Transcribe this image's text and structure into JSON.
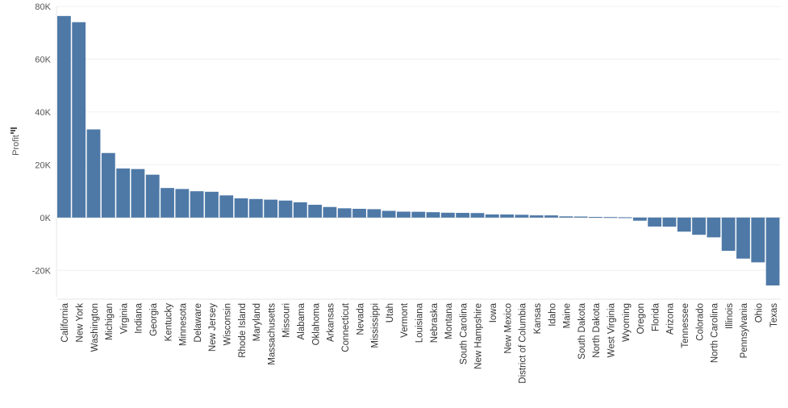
{
  "chart_data": {
    "type": "bar",
    "ylabel": "Profit",
    "ylim": [
      -30000,
      80000
    ],
    "yticks": [
      80000,
      60000,
      40000,
      20000,
      0,
      -20000
    ],
    "ytick_labels": [
      "80K",
      "60K",
      "40K",
      "20K",
      "0K",
      "-20K"
    ],
    "bar_color": "#4e79a7",
    "grid": true,
    "sort": "descending",
    "categories": [
      "California",
      "New York",
      "Washington",
      "Michigan",
      "Virginia",
      "Indiana",
      "Georgia",
      "Kentucky",
      "Minnesota",
      "Delaware",
      "New Jersey",
      "Wisconsin",
      "Rhode Island",
      "Maryland",
      "Massachusetts",
      "Missouri",
      "Alabama",
      "Oklahoma",
      "Arkansas",
      "Connecticut",
      "Nevada",
      "Mississippi",
      "Utah",
      "Vermont",
      "Louisiana",
      "Nebraska",
      "Montana",
      "South Carolina",
      "New Hampshire",
      "Iowa",
      "New Mexico",
      "District of Columbia",
      "Kansas",
      "Idaho",
      "Maine",
      "South Dakota",
      "North Dakota",
      "West Virginia",
      "Wyoming",
      "Oregon",
      "Florida",
      "Arizona",
      "Tennessee",
      "Colorado",
      "North Carolina",
      "Illinois",
      "Pennsylvania",
      "Ohio",
      "Texas"
    ],
    "values": [
      76381,
      74039,
      33403,
      24463,
      18598,
      18383,
      16250,
      11200,
      10823,
      9977,
      9773,
      8402,
      7286,
      7031,
      6786,
      6436,
      5787,
      4854,
      4009,
      3511,
      3317,
      3173,
      2547,
      2245,
      2196,
      2037,
      1833,
      1770,
      1707,
      1184,
      1157,
      1060,
      836,
      827,
      454,
      395,
      230,
      186,
      100,
      -1190,
      -3399,
      -3428,
      -5342,
      -6528,
      -7491,
      -12608,
      -15560,
      -16971,
      -25729
    ]
  }
}
